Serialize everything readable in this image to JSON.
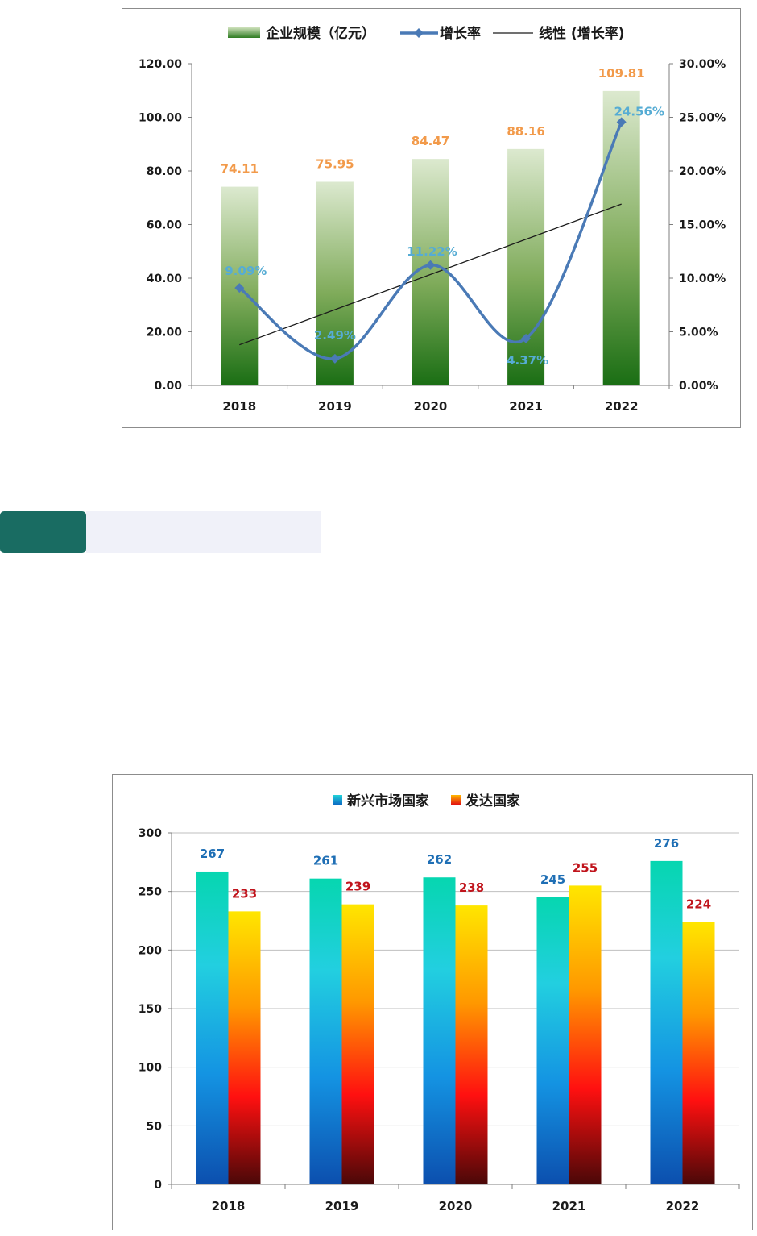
{
  "section_header": {
    "label": ""
  },
  "chart_data": [
    {
      "type": "bar+line",
      "categories": [
        "2018",
        "2019",
        "2020",
        "2021",
        "2022"
      ],
      "series": [
        {
          "name": "企业规模（亿元）",
          "type": "bar",
          "axis": "left",
          "values": [
            74.11,
            75.95,
            84.47,
            88.16,
            109.81
          ],
          "labels": [
            "74.11",
            "75.95",
            "84.47",
            "88.16",
            "109.81"
          ]
        },
        {
          "name": "增长率",
          "type": "line",
          "axis": "right",
          "values": [
            9.09,
            2.49,
            11.22,
            4.37,
            24.56
          ],
          "labels": [
            "9.09%",
            "2.49%",
            "11.22%",
            "4.37%",
            "24.56%"
          ]
        },
        {
          "name": "线性 (增长率)",
          "type": "trendline",
          "axis": "right"
        }
      ],
      "y_left": {
        "range": [
          0,
          120
        ],
        "ticks": [
          "0.00",
          "20.00",
          "40.00",
          "60.00",
          "80.00",
          "100.00",
          "120.00"
        ]
      },
      "y_right": {
        "range": [
          0,
          30
        ],
        "ticks": [
          "0.00%",
          "5.00%",
          "10.00%",
          "15.00%",
          "20.00%",
          "25.00%",
          "30.00%"
        ]
      },
      "legend_position": "top",
      "grid": false,
      "colors": {
        "bar_top": "#dce9cf",
        "bar_bottom": "#1a6e14",
        "bar_label": "#f29a4a",
        "line": "#4a7ab6",
        "line_label": "#56acd4",
        "trend": "#1a1a1a"
      }
    },
    {
      "type": "bar",
      "categories": [
        "2018",
        "2019",
        "2020",
        "2021",
        "2022"
      ],
      "series": [
        {
          "name": "新兴市场国家",
          "values": [
            267,
            261,
            262,
            245,
            276
          ]
        },
        {
          "name": "发达国家",
          "values": [
            233,
            239,
            238,
            255,
            224
          ]
        }
      ],
      "y": {
        "range": [
          0,
          300
        ],
        "ticks": [
          "0",
          "50",
          "100",
          "150",
          "200",
          "250",
          "300"
        ]
      },
      "legend_position": "top",
      "grid": true,
      "colors": {
        "s1_label": "#1f6fb5",
        "s2_label": "#c0141c",
        "grid": "#bfbfbf"
      }
    }
  ]
}
